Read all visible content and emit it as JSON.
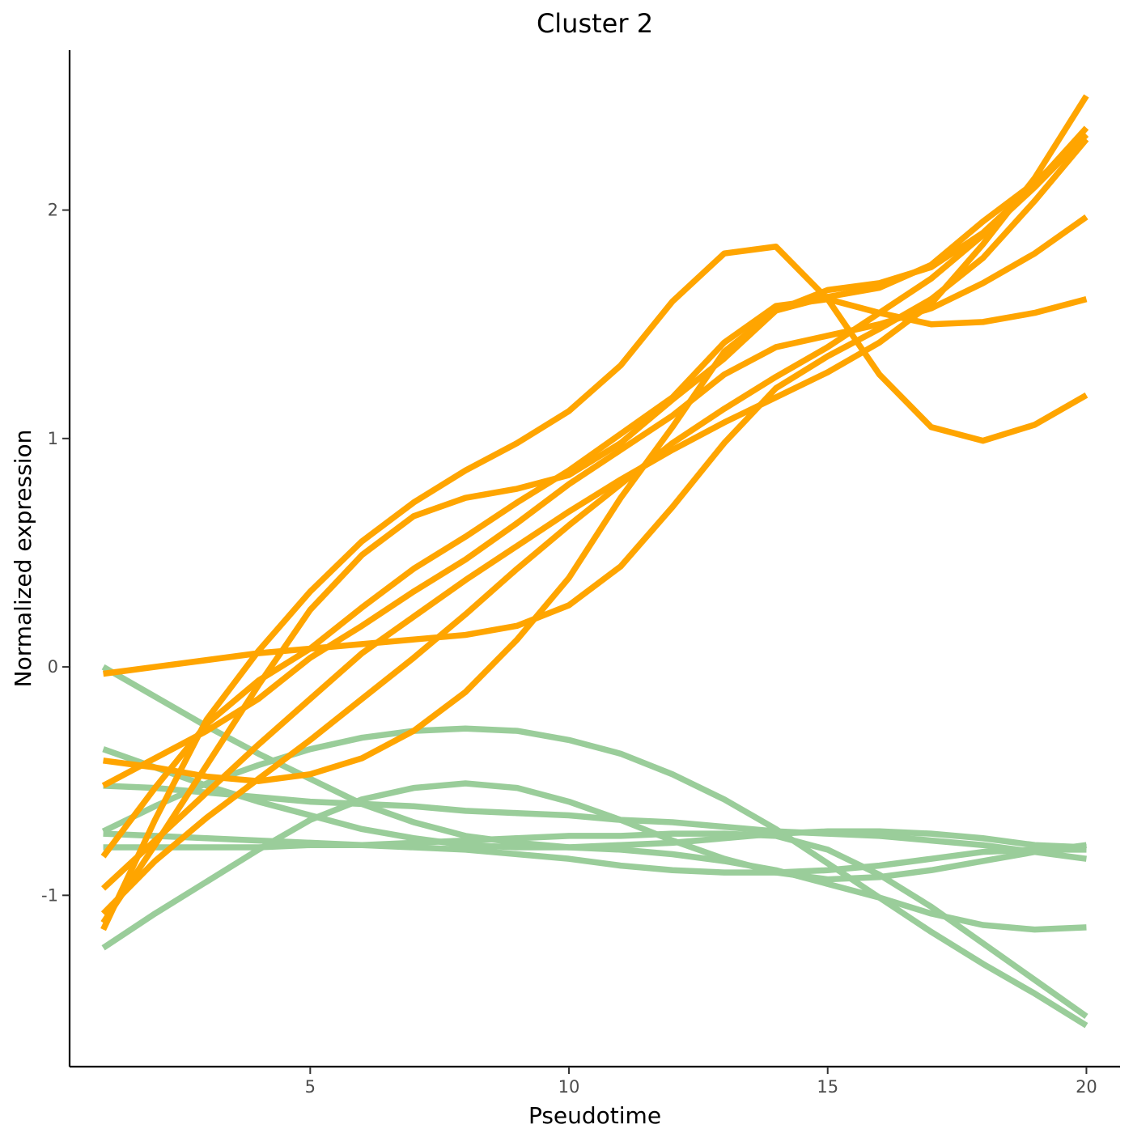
{
  "chart_data": {
    "type": "line",
    "title": "Cluster 2",
    "xlabel": "Pseudotime",
    "ylabel": "Normalized expression",
    "xlim": [
      0.35,
      20.65
    ],
    "ylim": [
      -1.75,
      2.7
    ],
    "x_ticks": [
      {
        "value": 5,
        "label": "5"
      },
      {
        "value": 10,
        "label": "10"
      },
      {
        "value": 15,
        "label": "15"
      },
      {
        "value": 20,
        "label": "20"
      }
    ],
    "y_ticks": [
      {
        "value": -1,
        "label": "-1"
      },
      {
        "value": 0,
        "label": "0"
      },
      {
        "value": 1,
        "label": "1"
      },
      {
        "value": 2,
        "label": "2"
      }
    ],
    "grid": false,
    "legend": "none",
    "colors": {
      "orange": "#FFA500",
      "green": "#9ACD9A"
    },
    "x": [
      1,
      2,
      3,
      4,
      5,
      6,
      7,
      8,
      9,
      10,
      11,
      12,
      13,
      14,
      15,
      16,
      17,
      18,
      19,
      20
    ],
    "series": [
      {
        "color": "orange",
        "values": [
          -0.83,
          -0.53,
          -0.25,
          -0.06,
          0.08,
          0.26,
          0.43,
          0.57,
          0.72,
          0.86,
          1.02,
          1.18,
          1.42,
          1.58,
          1.61,
          1.55,
          1.5,
          1.51,
          1.55,
          1.61
        ]
      },
      {
        "color": "orange",
        "values": [
          -1.12,
          -0.78,
          -0.43,
          -0.08,
          0.25,
          0.49,
          0.66,
          0.74,
          0.78,
          0.84,
          0.98,
          1.17,
          1.35,
          1.56,
          1.65,
          1.68,
          1.75,
          1.9,
          2.11,
          2.36
        ]
      },
      {
        "color": "orange",
        "values": [
          -1.15,
          -0.67,
          -0.23,
          0.07,
          0.33,
          0.55,
          0.72,
          0.86,
          0.98,
          1.12,
          1.32,
          1.6,
          1.81,
          1.84,
          1.61,
          1.28,
          1.05,
          0.99,
          1.06,
          1.19
        ]
      },
      {
        "color": "orange",
        "values": [
          -0.97,
          -0.76,
          -0.55,
          -0.34,
          -0.14,
          0.06,
          0.22,
          0.38,
          0.53,
          0.68,
          0.82,
          0.95,
          1.07,
          1.18,
          1.29,
          1.42,
          1.59,
          1.85,
          2.14,
          2.5
        ]
      },
      {
        "color": "orange",
        "values": [
          -0.52,
          -0.4,
          -0.28,
          -0.14,
          0.04,
          0.18,
          0.33,
          0.47,
          0.63,
          0.8,
          0.95,
          1.1,
          1.28,
          1.4,
          1.45,
          1.5,
          1.57,
          1.68,
          1.81,
          1.97
        ]
      },
      {
        "color": "orange",
        "values": [
          -1.08,
          -0.85,
          -0.66,
          -0.49,
          -0.32,
          -0.14,
          0.04,
          0.23,
          0.43,
          0.62,
          0.8,
          0.98,
          1.13,
          1.27,
          1.4,
          1.55,
          1.7,
          1.89,
          2.1,
          2.33
        ]
      },
      {
        "color": "orange",
        "values": [
          -0.41,
          -0.44,
          -0.48,
          -0.5,
          -0.47,
          -0.4,
          -0.28,
          -0.11,
          0.12,
          0.39,
          0.74,
          1.05,
          1.38,
          1.56,
          1.62,
          1.66,
          1.76,
          1.95,
          2.12,
          2.33
        ]
      },
      {
        "color": "orange",
        "values": [
          -0.03,
          0.0,
          0.03,
          0.06,
          0.08,
          0.1,
          0.12,
          0.14,
          0.18,
          0.27,
          0.44,
          0.7,
          0.98,
          1.22,
          1.36,
          1.48,
          1.61,
          1.79,
          2.04,
          2.31
        ]
      },
      {
        "color": "green",
        "values": [
          -0.36,
          -0.44,
          -0.52,
          -0.59,
          -0.65,
          -0.71,
          -0.75,
          -0.78,
          -0.79,
          -0.79,
          -0.78,
          -0.77,
          -0.75,
          -0.73,
          -0.72,
          -0.72,
          -0.73,
          -0.75,
          -0.78,
          -0.79
        ]
      },
      {
        "color": "green",
        "values": [
          0.0,
          -0.13,
          -0.26,
          -0.38,
          -0.49,
          -0.6,
          -0.68,
          -0.74,
          -0.77,
          -0.79,
          -0.8,
          -0.82,
          -0.85,
          -0.89,
          -0.95,
          -1.01,
          -1.08,
          -1.13,
          -1.15,
          -1.14
        ]
      },
      {
        "color": "green",
        "values": [
          -0.72,
          -0.61,
          -0.51,
          -0.43,
          -0.36,
          -0.31,
          -0.28,
          -0.27,
          -0.28,
          -0.32,
          -0.38,
          -0.47,
          -0.58,
          -0.71,
          -0.86,
          -1.01,
          -1.16,
          -1.3,
          -1.43,
          -1.57
        ]
      },
      {
        "color": "green",
        "values": [
          -1.23,
          -1.08,
          -0.94,
          -0.8,
          -0.67,
          -0.58,
          -0.53,
          -0.51,
          -0.53,
          -0.59,
          -0.67,
          -0.76,
          -0.84,
          -0.9,
          -0.93,
          -0.92,
          -0.89,
          -0.85,
          -0.81,
          -0.78
        ]
      },
      {
        "color": "green",
        "values": [
          -0.52,
          -0.53,
          -0.55,
          -0.57,
          -0.59,
          -0.6,
          -0.61,
          -0.63,
          -0.64,
          -0.65,
          -0.67,
          -0.68,
          -0.7,
          -0.72,
          -0.73,
          -0.74,
          -0.76,
          -0.78,
          -0.81,
          -0.84
        ]
      },
      {
        "color": "green",
        "values": [
          -0.73,
          -0.74,
          -0.75,
          -0.76,
          -0.77,
          -0.78,
          -0.79,
          -0.8,
          -0.82,
          -0.84,
          -0.87,
          -0.89,
          -0.9,
          -0.9,
          -0.89,
          -0.87,
          -0.84,
          -0.81,
          -0.8,
          -0.8
        ]
      },
      {
        "color": "green",
        "values": [
          -0.79,
          -0.79,
          -0.79,
          -0.79,
          -0.78,
          -0.78,
          -0.77,
          -0.76,
          -0.75,
          -0.74,
          -0.74,
          -0.73,
          -0.73,
          -0.74,
          -0.8,
          -0.91,
          -1.05,
          -1.21,
          -1.37,
          -1.53
        ]
      }
    ]
  }
}
